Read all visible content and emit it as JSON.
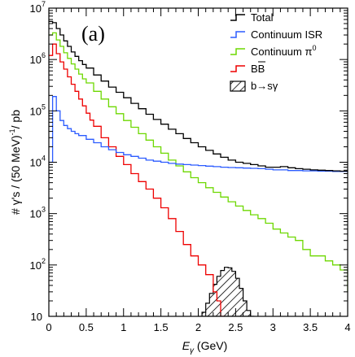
{
  "chart_data": {
    "type": "line",
    "panel_label": "(a)",
    "xlabel_main": "E",
    "xlabel_sub": "γ",
    "xlabel_unit": " (GeV)",
    "ylabel": "# γ's / (50 MeV)/ pb",
    "ylabel_sup": "-1",
    "xlim": [
      0,
      4
    ],
    "ylim": [
      10,
      10000000
    ],
    "y_scale": "log",
    "x_ticks": [
      "0",
      "0.5",
      "1",
      "1.5",
      "2",
      "2.5",
      "3",
      "3.5",
      "4"
    ],
    "y_ticks": [
      {
        "base": "10",
        "exp": ""
      },
      {
        "base": "10",
        "exp": "2"
      },
      {
        "base": "10",
        "exp": "3"
      },
      {
        "base": "10",
        "exp": "4"
      },
      {
        "base": "10",
        "exp": "5"
      },
      {
        "base": "10",
        "exp": "6"
      },
      {
        "base": "10",
        "exp": "7"
      }
    ],
    "legend_position": "top-right",
    "series": [
      {
        "name": "Total",
        "color": "#000000",
        "legend_plain": "Total",
        "x": [
          0.0,
          0.05,
          0.1,
          0.15,
          0.2,
          0.25,
          0.3,
          0.35,
          0.4,
          0.45,
          0.5,
          0.6,
          0.7,
          0.8,
          0.9,
          1.0,
          1.1,
          1.2,
          1.3,
          1.4,
          1.5,
          1.6,
          1.7,
          1.8,
          1.9,
          2.0,
          2.1,
          2.2,
          2.3,
          2.4,
          2.5,
          2.6,
          2.7,
          2.8,
          2.9,
          3.0,
          3.1,
          3.2,
          3.3,
          3.4,
          3.5,
          3.6,
          3.7,
          3.8,
          3.9,
          4.0
        ],
        "y": [
          5500000,
          5200000,
          4000000,
          3000000,
          2300000,
          1800000,
          1400000,
          1150000,
          950000,
          800000,
          680000,
          500000,
          380000,
          290000,
          230000,
          180000,
          140000,
          110000,
          86000,
          68000,
          55000,
          44000,
          36000,
          29000,
          24000,
          20000,
          17000,
          14500,
          12500,
          11000,
          10000,
          9500,
          9000,
          8500,
          8000,
          8000,
          8200,
          7800,
          7500,
          7300,
          7100,
          7000,
          6900,
          6800,
          6700,
          6600
        ]
      },
      {
        "name": "Continuum ISR",
        "color": "#2b5bff",
        "legend_plain": "Continuum ISR",
        "x": [
          0.0,
          0.05,
          0.1,
          0.15,
          0.2,
          0.25,
          0.3,
          0.35,
          0.4,
          0.5,
          0.6,
          0.7,
          0.8,
          0.9,
          1.0,
          1.1,
          1.2,
          1.3,
          1.4,
          1.5,
          1.6,
          1.7,
          1.8,
          1.9,
          2.0,
          2.1,
          2.2,
          2.3,
          2.4,
          2.5,
          2.6,
          2.7,
          2.8,
          2.9,
          3.0,
          3.2,
          3.4,
          3.6,
          3.8,
          4.0
        ],
        "y": [
          10000,
          190000,
          100000,
          65000,
          52000,
          45000,
          40000,
          36000,
          33000,
          28000,
          24000,
          20000,
          17500,
          15500,
          14000,
          13000,
          12000,
          11000,
          10500,
          10000,
          9500,
          9200,
          9000,
          8800,
          8600,
          8400,
          8200,
          8000,
          7900,
          7800,
          7700,
          7600,
          7500,
          7300,
          7100,
          6900,
          6800,
          6700,
          6600,
          6500
        ]
      },
      {
        "name": "Continuum π",
        "sup": "0",
        "color": "#6dd800",
        "legend_plain": "Continuum π",
        "x": [
          0.0,
          0.05,
          0.1,
          0.15,
          0.2,
          0.25,
          0.3,
          0.35,
          0.4,
          0.45,
          0.5,
          0.6,
          0.7,
          0.8,
          0.9,
          1.0,
          1.1,
          1.2,
          1.3,
          1.4,
          1.5,
          1.6,
          1.7,
          1.8,
          1.9,
          2.0,
          2.1,
          2.2,
          2.3,
          2.4,
          2.5,
          2.6,
          2.7,
          2.8,
          2.9,
          3.0,
          3.1,
          3.2,
          3.3,
          3.4,
          3.5,
          3.6,
          3.7,
          3.8,
          3.9,
          4.0
        ],
        "y": [
          3000000,
          3300000,
          2400000,
          1800000,
          1350000,
          1050000,
          820000,
          650000,
          520000,
          420000,
          350000,
          240000,
          170000,
          120000,
          88000,
          65000,
          48000,
          36000,
          27000,
          20000,
          15000,
          11000,
          8500,
          6500,
          5000,
          4000,
          3200,
          2600,
          2100,
          1700,
          1400,
          1150,
          950,
          800,
          650,
          500,
          420,
          350,
          300,
          200,
          150,
          150,
          120,
          100,
          80,
          30
        ]
      },
      {
        "name": "BB̄",
        "color": "#ee0000",
        "legend_plain": "BB",
        "x": [
          0.0,
          0.05,
          0.1,
          0.15,
          0.2,
          0.25,
          0.3,
          0.35,
          0.4,
          0.45,
          0.5,
          0.55,
          0.6,
          0.7,
          0.8,
          0.9,
          1.0,
          1.1,
          1.2,
          1.3,
          1.4,
          1.5,
          1.6,
          1.7,
          1.8,
          1.9,
          2.0,
          2.1,
          2.2,
          2.25,
          2.3
        ],
        "y": [
          1200000,
          2000000,
          1300000,
          900000,
          650000,
          460000,
          330000,
          240000,
          170000,
          125000,
          90000,
          66000,
          50000,
          30000,
          20000,
          13000,
          9000,
          6000,
          4200,
          3000,
          2000,
          1300,
          800,
          450,
          250,
          150,
          100,
          65,
          30,
          20,
          10
        ]
      }
    ],
    "signal": {
      "name": "b→sγ",
      "color": "#000000",
      "x": [
        2.0,
        2.05,
        2.1,
        2.15,
        2.2,
        2.25,
        2.3,
        2.35,
        2.4,
        2.45,
        2.5,
        2.55,
        2.6,
        2.65,
        2.7
      ],
      "y": [
        10,
        12,
        18,
        28,
        42,
        60,
        78,
        90,
        88,
        75,
        55,
        35,
        20,
        13,
        10
      ]
    }
  }
}
